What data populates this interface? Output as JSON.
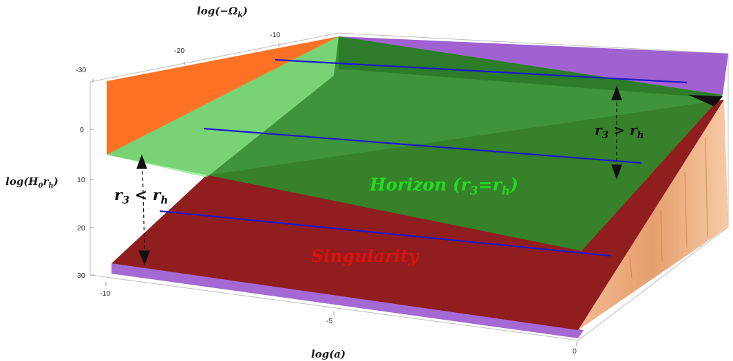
{
  "chart_data": {
    "type": "area",
    "axes": {
      "x": {
        "label": "log(a)",
        "ticks": [
          "-10",
          "-5",
          "0"
        ],
        "range": [
          -10,
          0
        ]
      },
      "y": {
        "label": "log(−Ω",
        "label_sub": "k",
        "label_end": ")",
        "ticks": [
          "-10",
          "-20",
          "-30"
        ],
        "range": [
          -30,
          -10
        ]
      },
      "z": {
        "label": "log(H",
        "label_sub1": "0",
        "label_mid": "r",
        "label_sub2": "h",
        "label_end": ")",
        "ticks": [
          "0",
          "10",
          "20",
          "30"
        ],
        "range": [
          0,
          30
        ]
      }
    },
    "regions": [
      {
        "name": "horizon",
        "label": "Horizon (r",
        "sub": "3",
        "mid": "=r",
        "sub2": "h",
        "end": ")",
        "color": "#22dd22"
      },
      {
        "name": "singularity",
        "label": "Singularity",
        "color": "#dd1111"
      }
    ],
    "relations": {
      "upper": {
        "a": "r",
        "sub1": "3",
        "op": " > r",
        "sub2": "h"
      },
      "lower": {
        "a": "r",
        "sub1": "3",
        "op": " < r",
        "sub2": "h"
      }
    },
    "surface_colors": {
      "horizon_plane": "#2f8a2a",
      "singularity_plane": "#8b1515",
      "orange_wall": "#ff6a1a",
      "purple_wall": "#9955cc",
      "light_green": "#7de07d",
      "tan_side": "#e9a678",
      "trajectory_line": "#1a1acc"
    }
  }
}
